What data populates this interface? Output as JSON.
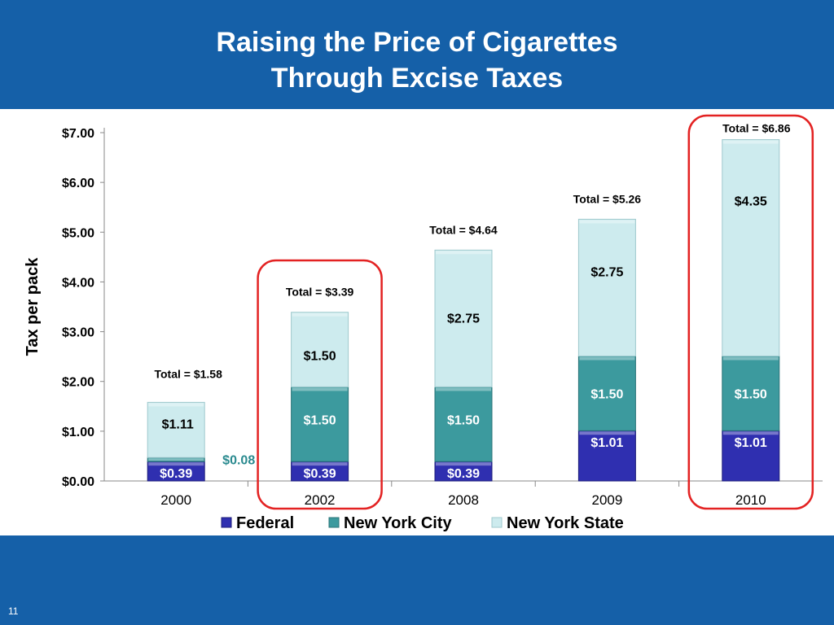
{
  "slide": {
    "title_line1": "Raising the Price of Cigarettes",
    "title_line2": "Through Excise Taxes",
    "page_number": "11"
  },
  "colors": {
    "band": "#1560a8",
    "federal": "#2f2fb0",
    "nyc": "#3c9a9e",
    "nys": "#cdebee",
    "highlight": "#e32222",
    "orphan_label": "#2a8a8f"
  },
  "chart_data": {
    "type": "bar",
    "stacked": true,
    "categories": [
      "2000",
      "2002",
      "2008",
      "2009",
      "2010"
    ],
    "series": [
      {
        "name": "Federal",
        "values": [
          0.39,
          0.39,
          0.39,
          1.01,
          1.01
        ],
        "labels": [
          "$0.39",
          "$0.39",
          "$0.39",
          "$1.01",
          "$1.01"
        ]
      },
      {
        "name": "New York City",
        "values": [
          0.08,
          1.5,
          1.5,
          1.5,
          1.5
        ],
        "labels": [
          "$0.08",
          "$1.50",
          "$1.50",
          "$1.50",
          "$1.50"
        ]
      },
      {
        "name": "New York State",
        "values": [
          1.11,
          1.5,
          2.75,
          2.75,
          4.35
        ],
        "labels": [
          "$1.11",
          "$1.50",
          "$2.75",
          "$2.75",
          "$4.35"
        ]
      }
    ],
    "totals": [
      "Total = $1.58",
      "Total = $3.39",
      "Total = $4.64",
      "Total = $5.26",
      "Total = $6.86"
    ],
    "y_ticks": [
      "$0.00",
      "$1.00",
      "$2.00",
      "$3.00",
      "$4.00",
      "$5.00",
      "$6.00",
      "$7.00"
    ],
    "ylabel": "Tax per pack",
    "xlabel": "",
    "ylim": [
      0,
      7
    ],
    "highlighted_categories": [
      "2002",
      "2010"
    ],
    "legend_position": "bottom",
    "grid": false
  }
}
